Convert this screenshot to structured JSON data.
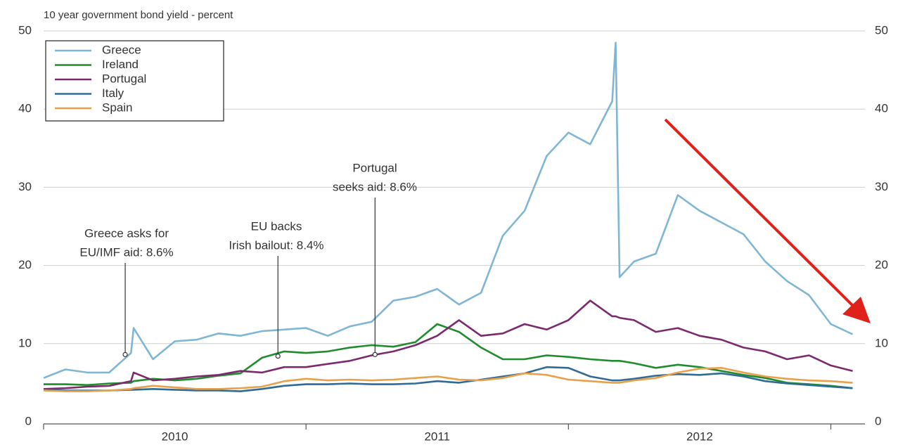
{
  "chart_data": {
    "type": "line",
    "title": "10 year government bond yield - percent",
    "x": [
      2010,
      2010.083,
      2010.167,
      2010.25,
      2010.333,
      2010.343,
      2010.417,
      2010.5,
      2010.583,
      2010.667,
      2010.75,
      2010.833,
      2010.917,
      2011,
      2011.083,
      2011.167,
      2011.25,
      2011.333,
      2011.417,
      2011.5,
      2011.583,
      2011.667,
      2011.75,
      2011.833,
      2011.917,
      2012,
      2012.083,
      2012.167,
      2012.18,
      2012.195,
      2012.25,
      2012.333,
      2012.417,
      2012.5,
      2012.583,
      2012.667,
      2012.75,
      2012.833,
      2012.917,
      2013,
      2013.083
    ],
    "series": [
      {
        "name": "Greece",
        "color": "#7fb6d4",
        "values": [
          5.6,
          6.7,
          6.3,
          6.3,
          8.8,
          12,
          8.0,
          10.3,
          10.5,
          11.3,
          11.0,
          11.6,
          11.8,
          12.0,
          11.0,
          12.2,
          12.8,
          15.5,
          16.0,
          17.0,
          15.0,
          16.5,
          23.8,
          27,
          34,
          37,
          35.5,
          41,
          48.5,
          18.5,
          20.5,
          21.5,
          29,
          27,
          25.5,
          24,
          20.5,
          18,
          16.2,
          12.5,
          11.2
        ]
      },
      {
        "name": "Ireland",
        "color": "#1f8c2e",
        "values": [
          4.8,
          4.8,
          4.7,
          4.9,
          5.0,
          5.2,
          5.5,
          5.3,
          5.5,
          5.9,
          6.2,
          8.2,
          9.0,
          8.8,
          9.0,
          9.5,
          9.8,
          9.6,
          10.2,
          12.5,
          11.5,
          9.5,
          8.0,
          8.0,
          8.5,
          8.3,
          8.0,
          7.8,
          7.8,
          7.8,
          7.5,
          6.9,
          7.3,
          7.0,
          6.5,
          6.0,
          5.6,
          5.0,
          4.8,
          4.6,
          4.3
        ]
      },
      {
        "name": "Portugal",
        "color": "#7b2a6e",
        "values": [
          4.2,
          4.3,
          4.5,
          4.6,
          5.2,
          6.3,
          5.3,
          5.5,
          5.8,
          6.0,
          6.5,
          6.3,
          7.0,
          7.0,
          7.4,
          7.8,
          8.5,
          9.0,
          9.8,
          11.0,
          13.0,
          11.0,
          11.3,
          12.5,
          11.8,
          13.0,
          15.5,
          13.5,
          13.5,
          13.3,
          13.0,
          11.5,
          12.0,
          11.0,
          10.5,
          9.5,
          9.0,
          8.0,
          8.5,
          7.2,
          6.5
        ]
      },
      {
        "name": "Italy",
        "color": "#2f6b94",
        "values": [
          4.1,
          4.0,
          4.0,
          4.0,
          4.1,
          4.1,
          4.2,
          4.1,
          4.0,
          4.0,
          3.9,
          4.2,
          4.6,
          4.8,
          4.8,
          4.9,
          4.8,
          4.8,
          4.9,
          5.2,
          5.0,
          5.4,
          5.8,
          6.2,
          7.0,
          6.9,
          5.8,
          5.3,
          5.3,
          5.3,
          5.5,
          5.9,
          6.1,
          6.0,
          6.2,
          5.8,
          5.2,
          4.9,
          4.7,
          4.5,
          4.3
        ]
      },
      {
        "name": "Spain",
        "color": "#e8a04a",
        "values": [
          4.0,
          3.9,
          3.9,
          4.0,
          4.2,
          4.3,
          4.6,
          4.4,
          4.2,
          4.2,
          4.3,
          4.5,
          5.2,
          5.5,
          5.3,
          5.4,
          5.3,
          5.4,
          5.6,
          5.8,
          5.4,
          5.3,
          5.6,
          6.2,
          6.0,
          5.4,
          5.2,
          5.0,
          5.0,
          5.0,
          5.3,
          5.6,
          6.3,
          6.8,
          6.9,
          6.3,
          5.8,
          5.5,
          5.3,
          5.2,
          5.0
        ]
      }
    ],
    "xlim": [
      2010,
      2013.13
    ],
    "xticks": [
      {
        "value": 2010.5,
        "label": "2010"
      },
      {
        "value": 2011.5,
        "label": "2011"
      },
      {
        "value": 2012.5,
        "label": "2012"
      }
    ],
    "xtick_marks": [
      2010,
      2011,
      2012,
      2013
    ],
    "ylim": [
      0,
      50
    ],
    "yticks": [
      0,
      10,
      20,
      30,
      40,
      50
    ],
    "y2lim": [
      0,
      50
    ],
    "y2ticks": [
      0,
      10,
      20,
      30,
      40,
      50
    ],
    "grid": true,
    "legend": "upper left",
    "annotations": [
      {
        "lines": [
          "Greece asks for",
          "EU/IMF aid: 8.6%"
        ],
        "x": 2010.311,
        "y": 8.6
      },
      {
        "lines": [
          "EU backs",
          "Irish bailout: 8.4%"
        ],
        "x": 2010.893,
        "y": 8.4
      },
      {
        "lines": [
          "Portugal",
          "seeks aid: 8.6%"
        ],
        "x": 2011.263,
        "y": 8.6
      }
    ]
  }
}
